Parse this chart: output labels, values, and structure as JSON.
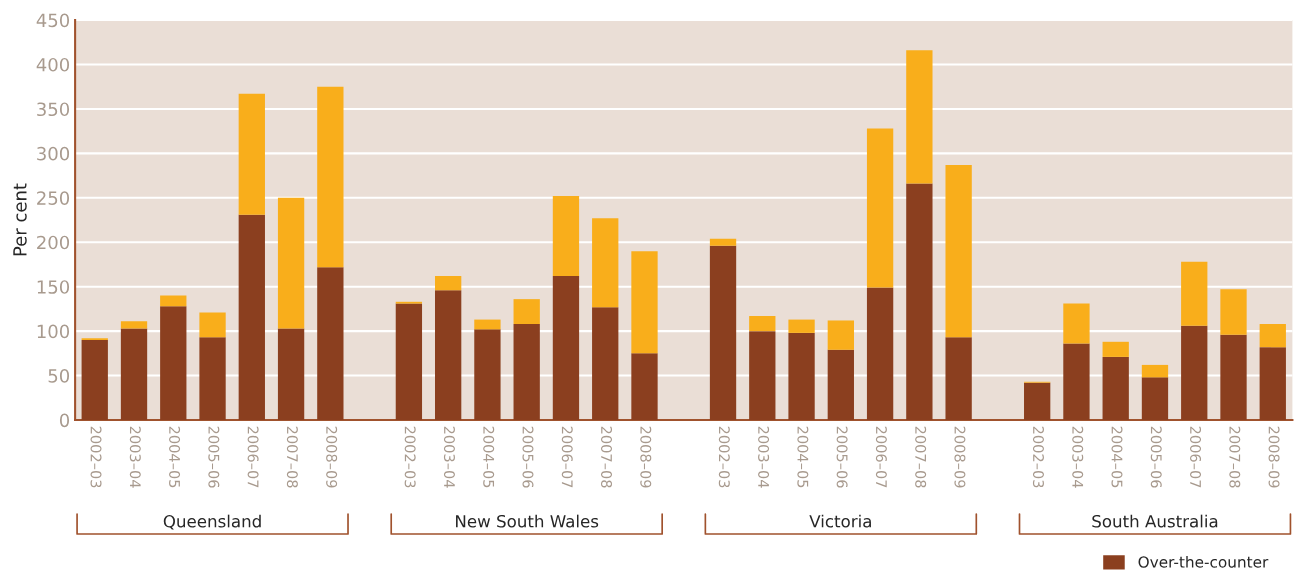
{
  "chart_data": {
    "type": "bar",
    "stacked": true,
    "ylabel": "Per cent",
    "categories": [
      "2002–03",
      "2003–04",
      "2004–05",
      "2005–06",
      "2006–07",
      "2007–08",
      "2008–09",
      null,
      "2002–03",
      "2003–04",
      "2004–05",
      "2005–06",
      "2006–07",
      "2007–08",
      "2008–09",
      null,
      "2002–03",
      "2003–04",
      "2004–05",
      "2005–06",
      "2006–07",
      "2007–08",
      "2008–09",
      null,
      "2002–03",
      "2003–04",
      "2004–05",
      "2005–06",
      "2006–07",
      "2007–08",
      "2008–09"
    ],
    "series": [
      {
        "name": "Over-the-counter",
        "color": "#8b3f1f",
        "values": [
          90,
          103,
          128,
          93,
          231,
          103,
          172,
          null,
          131,
          146,
          102,
          108,
          162,
          127,
          75,
          null,
          196,
          100,
          98,
          79,
          149,
          266,
          93,
          null,
          42,
          86,
          71,
          48,
          106,
          96,
          82
        ]
      },
      {
        "color": "#f9ae1b",
        "values": [
          2,
          8,
          12,
          28,
          136,
          147,
          203,
          null,
          2,
          16,
          11,
          28,
          90,
          100,
          115,
          null,
          8,
          17,
          15,
          33,
          179,
          150,
          194,
          null,
          1,
          45,
          17,
          14,
          72,
          51,
          26
        ]
      }
    ],
    "annotations": [
      "Queensland",
      "New South Wales",
      "Victoria",
      "South Australia"
    ],
    "ylim": [
      0,
      450
    ],
    "yticks": [
      0,
      50,
      100,
      150,
      200,
      250,
      300,
      350,
      400,
      450
    ],
    "grid": "y",
    "legend": "bottom right"
  }
}
